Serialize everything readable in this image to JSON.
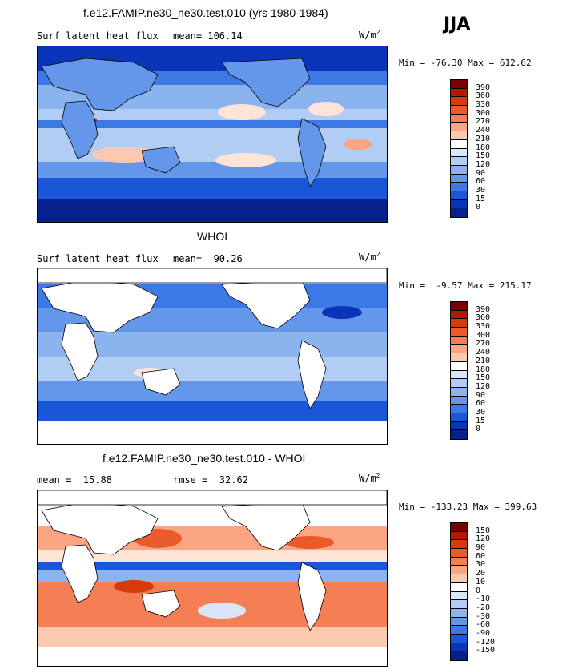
{
  "season": "JJA",
  "unit_main": "W/m",
  "unit_sup": "2",
  "panels": [
    {
      "id": "model",
      "title": "f.e12.FAMIP.ne30_ne30.test.010 (yrs 1980-1984)",
      "variable": "Surf latent heat flux",
      "stat": "mean= 106.14",
      "minmax": "Min = -76.30 Max = 612.62",
      "colorbar_labels": [
        "390",
        "360",
        "330",
        "300",
        "270",
        "240",
        "210",
        "180",
        "150",
        "120",
        "90",
        "60",
        "30",
        "15",
        "0"
      ]
    },
    {
      "id": "obs",
      "title": "WHOI",
      "variable": "Surf latent heat flux",
      "stat": "mean=  90.26",
      "minmax": "Min =  -9.57 Max = 215.17",
      "colorbar_labels": [
        "390",
        "360",
        "330",
        "300",
        "270",
        "240",
        "210",
        "180",
        "150",
        "120",
        "90",
        "60",
        "30",
        "15",
        "0"
      ]
    },
    {
      "id": "diff",
      "title": "f.e12.FAMIP.ne30_ne30.test.010 - WHOI",
      "variable": "mean =  15.88",
      "stat": "rmse =  32.62",
      "minmax": "Min = -133.23 Max = 399.63",
      "colorbar_labels": [
        "150",
        "120",
        "90",
        "60",
        "30",
        "20",
        "10",
        "0",
        "-10",
        "-20",
        "-30",
        "-60",
        "-90",
        "-120",
        "-150"
      ]
    }
  ],
  "colors": {
    "abs_scale": [
      "#7a0000",
      "#b01a00",
      "#d63a0c",
      "#ea5a2c",
      "#f57f55",
      "#fba583",
      "#fcc8ae",
      "#fde4d6",
      "#ffffff",
      "#d8e6f8",
      "#b1cdf3",
      "#8bb3ee",
      "#6497ea",
      "#3d79e4",
      "#1a57d8",
      "#0b35b8",
      "#06208e"
    ],
    "diff_scale": [
      "#7a0000",
      "#b01a00",
      "#d63a0c",
      "#ea5a2c",
      "#f57f55",
      "#fba583",
      "#fcc8ae",
      "#fde4d6",
      "#ffffff",
      "#d8e6f8",
      "#b1cdf3",
      "#8bb3ee",
      "#6497ea",
      "#3d79e4",
      "#1a57d8",
      "#0b35b8",
      "#06208e"
    ],
    "land_mask": "#ffffff",
    "coast": "#000000"
  }
}
